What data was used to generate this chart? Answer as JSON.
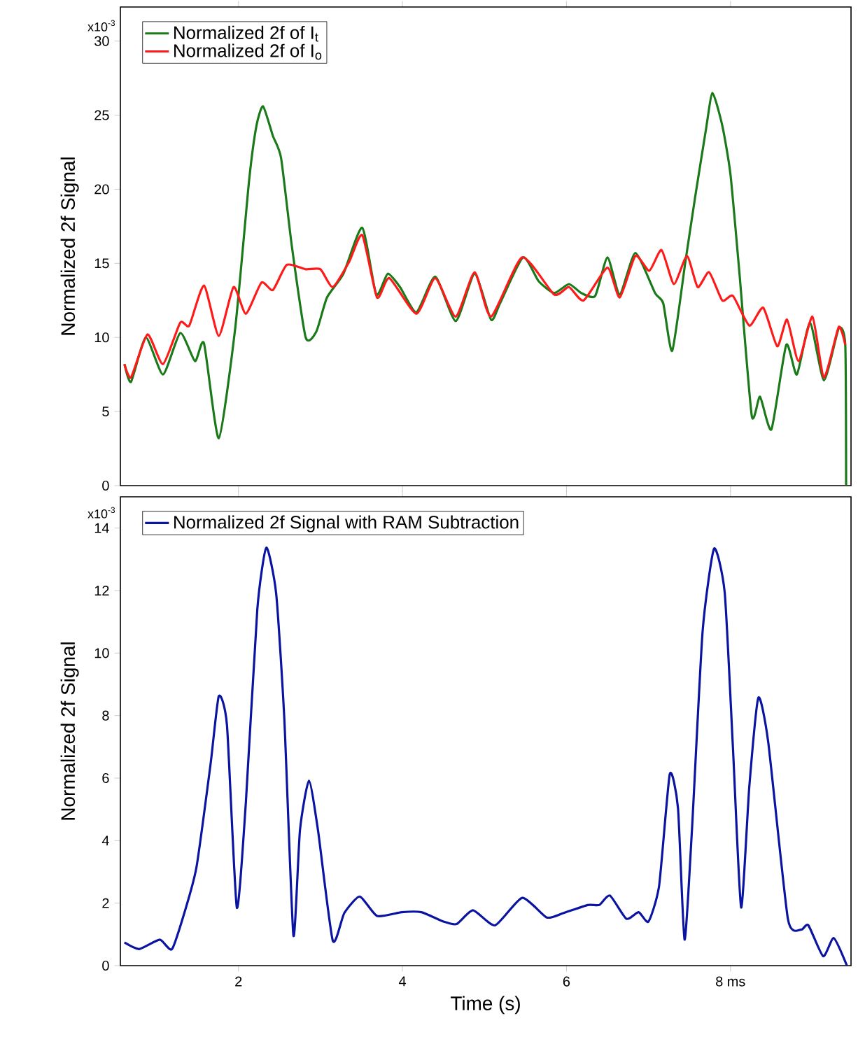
{
  "chart_data": [
    {
      "type": "line",
      "ylabel": "Normalized 2f Signal",
      "legend": "top left",
      "marker": "none",
      "tick_labels": "y",
      "xlim": [
        0.56,
        9.47
      ],
      "ylim": [
        0,
        32.3
      ],
      "xticks": [
        2,
        4,
        6,
        8
      ],
      "yticks": [
        0,
        5,
        10,
        15,
        20,
        25,
        30
      ],
      "annotations": [
        "x10$^{-3}$"
      ],
      "series": [
        {
          "name": "Normalized 2f of I$_{t}$",
          "color": "#1a7a1a",
          "x": [
            0.61,
            0.69,
            0.87,
            1.08,
            1.29,
            1.47,
            1.58,
            1.76,
            1.96,
            2.13,
            2.22,
            2.3,
            2.42,
            2.52,
            2.65,
            2.82,
            2.95,
            3.08,
            3.28,
            3.51,
            3.68,
            3.82,
            3.97,
            4.17,
            4.4,
            4.65,
            4.88,
            5.08,
            5.19,
            5.47,
            5.66,
            5.85,
            6.03,
            6.18,
            6.35,
            6.5,
            6.65,
            6.84,
            7.08,
            7.18,
            7.29,
            7.45,
            7.57,
            7.7,
            7.78,
            7.9,
            8.0,
            8.11,
            8.26,
            8.36,
            8.5,
            8.68,
            8.81,
            8.97,
            9.14,
            9.32,
            9.4,
            9.41
          ],
          "values": [
            8.2,
            7.0,
            10.0,
            7.5,
            10.3,
            8.4,
            9.6,
            3.2,
            10.6,
            20.6,
            24.3,
            25.6,
            23.6,
            22.1,
            16.2,
            10.0,
            10.4,
            12.7,
            14.3,
            17.4,
            12.9,
            14.3,
            13.4,
            11.7,
            14.1,
            11.1,
            14.3,
            11.2,
            12.3,
            15.4,
            13.8,
            13.0,
            13.6,
            13.0,
            12.8,
            15.4,
            12.9,
            15.7,
            13.0,
            12.3,
            9.1,
            15.1,
            19.5,
            24.0,
            26.5,
            24.3,
            21.0,
            14.3,
            4.7,
            6.0,
            3.8,
            9.5,
            7.5,
            11.0,
            7.1,
            10.6,
            9.5,
            0
          ]
        },
        {
          "name": "Normalized 2f of I$_{o}$",
          "color": "#ff1a1a",
          "x": [
            0.61,
            0.69,
            0.89,
            1.08,
            1.29,
            1.4,
            1.58,
            1.76,
            1.94,
            2.09,
            2.28,
            2.42,
            2.59,
            2.82,
            3.0,
            3.15,
            3.35,
            3.51,
            3.69,
            3.84,
            4.17,
            4.4,
            4.65,
            4.88,
            5.08,
            5.46,
            5.85,
            6.03,
            6.21,
            6.5,
            6.65,
            6.84,
            7.01,
            7.16,
            7.31,
            7.47,
            7.6,
            7.74,
            7.9,
            8.03,
            8.23,
            8.4,
            8.57,
            8.69,
            8.83,
            9.0,
            9.14,
            9.32,
            9.4
          ],
          "values": [
            8.2,
            7.3,
            10.2,
            8.2,
            11.0,
            10.8,
            13.5,
            10.1,
            13.4,
            11.6,
            13.7,
            13.2,
            14.9,
            14.6,
            14.6,
            13.4,
            15.1,
            16.9,
            12.7,
            14.0,
            11.6,
            14.0,
            11.4,
            14.4,
            11.4,
            15.4,
            12.9,
            13.4,
            12.5,
            14.7,
            12.7,
            15.5,
            14.5,
            15.9,
            13.6,
            15.5,
            13.4,
            14.4,
            12.5,
            12.8,
            10.8,
            12.0,
            9.4,
            11.2,
            8.4,
            11.4,
            7.3,
            10.7,
            9.5
          ]
        }
      ]
    },
    {
      "type": "line",
      "xlabel": "Time (s)",
      "ylabel": "Normalized 2f Signal",
      "legend": "top left",
      "marker": "none",
      "xlim": [
        0.56,
        9.47
      ],
      "ylim": [
        0,
        15
      ],
      "xticks": [
        2,
        4,
        6,
        {
          "value": 8,
          "label": "8 ms"
        }
      ],
      "yticks": [
        0,
        2,
        4,
        6,
        8,
        10,
        12,
        14
      ],
      "annotations": [
        "x10$^{-3}$"
      ],
      "series": [
        {
          "name": "Normalized 2f Signal with RAM Subtraction",
          "color": "#0a14a0",
          "x": [
            0.61,
            0.79,
            1.04,
            1.19,
            1.36,
            1.49,
            1.66,
            1.76,
            1.86,
            1.98,
            2.09,
            2.23,
            2.34,
            2.46,
            2.56,
            2.67,
            2.75,
            2.86,
            2.97,
            3.15,
            3.29,
            3.48,
            3.69,
            3.99,
            4.23,
            4.5,
            4.66,
            4.86,
            5.13,
            5.46,
            5.76,
            5.96,
            6.26,
            6.4,
            6.53,
            6.73,
            6.88,
            7.0,
            7.13,
            7.26,
            7.36,
            7.44,
            7.53,
            7.66,
            7.8,
            7.93,
            8.03,
            8.13,
            8.23,
            8.34,
            8.46,
            8.7,
            8.86,
            8.95,
            9.13,
            9.26,
            9.42
          ],
          "values": [
            0.74,
            0.53,
            0.83,
            0.53,
            1.86,
            3.18,
            6.45,
            8.62,
            7.69,
            1.86,
            5.21,
            11.4,
            13.37,
            11.9,
            7.86,
            0.97,
            4.33,
            5.92,
            4.33,
            0.8,
            1.68,
            2.21,
            1.59,
            1.71,
            1.71,
            1.41,
            1.33,
            1.77,
            1.29,
            2.17,
            1.54,
            1.68,
            1.94,
            1.94,
            2.24,
            1.5,
            1.71,
            1.41,
            2.56,
            6.13,
            5.04,
            0.83,
            4.33,
            10.69,
            13.34,
            11.93,
            6.98,
            1.86,
            5.74,
            8.57,
            7.16,
            1.5,
            1.15,
            1.29,
            0.3,
            0.88,
            0
          ]
        }
      ]
    }
  ]
}
